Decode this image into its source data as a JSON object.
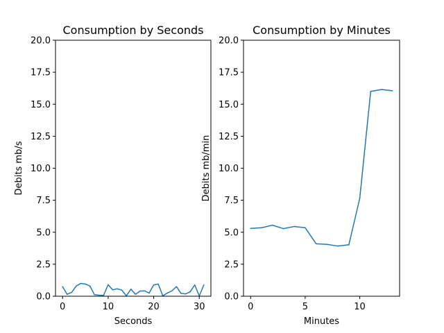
{
  "chart_data": [
    {
      "type": "line",
      "title": "Consumption by Seconds",
      "xlabel": "Seconds",
      "ylabel": "Debits mb/s",
      "xlim": [
        -1.55,
        32.55
      ],
      "ylim": [
        0,
        20
      ],
      "xticks": [
        0,
        10,
        20,
        30
      ],
      "yticks": [
        0.0,
        2.5,
        5.0,
        7.5,
        10.0,
        12.5,
        15.0,
        17.5,
        20.0
      ],
      "grid": false,
      "color": "#1f77b4",
      "x": [
        0,
        1,
        2,
        3,
        4,
        5,
        6,
        7,
        8,
        9,
        10,
        11,
        12,
        13,
        14,
        15,
        16,
        17,
        18,
        19,
        20,
        21,
        22,
        23,
        24,
        25,
        26,
        27,
        28,
        29,
        30,
        31
      ],
      "values": [
        0.75,
        0.15,
        0.3,
        0.8,
        1.0,
        0.95,
        0.8,
        0.12,
        0.08,
        0.07,
        0.9,
        0.5,
        0.58,
        0.48,
        0.03,
        0.55,
        0.15,
        0.4,
        0.42,
        0.25,
        0.88,
        0.95,
        0.03,
        0.25,
        0.42,
        0.75,
        0.22,
        0.18,
        0.35,
        0.88,
        0.02,
        0.88
      ]
    },
    {
      "type": "line",
      "title": "Consumption by Minutes",
      "xlabel": "Minutes",
      "ylabel": "Debits mb/min",
      "xlim": [
        -0.65,
        13.65
      ],
      "ylim": [
        0,
        20
      ],
      "xticks": [
        0,
        5,
        10
      ],
      "yticks": [
        0.0,
        2.5,
        5.0,
        7.5,
        10.0,
        12.5,
        15.0,
        17.5,
        20.0
      ],
      "grid": false,
      "color": "#1f77b4",
      "x": [
        0,
        1,
        2,
        3,
        4,
        5,
        6,
        7,
        8,
        9,
        10,
        11,
        12,
        13
      ],
      "values": [
        5.3,
        5.35,
        5.55,
        5.28,
        5.45,
        5.35,
        4.1,
        4.05,
        3.92,
        4.02,
        7.65,
        16.0,
        16.15,
        16.05
      ]
    }
  ]
}
